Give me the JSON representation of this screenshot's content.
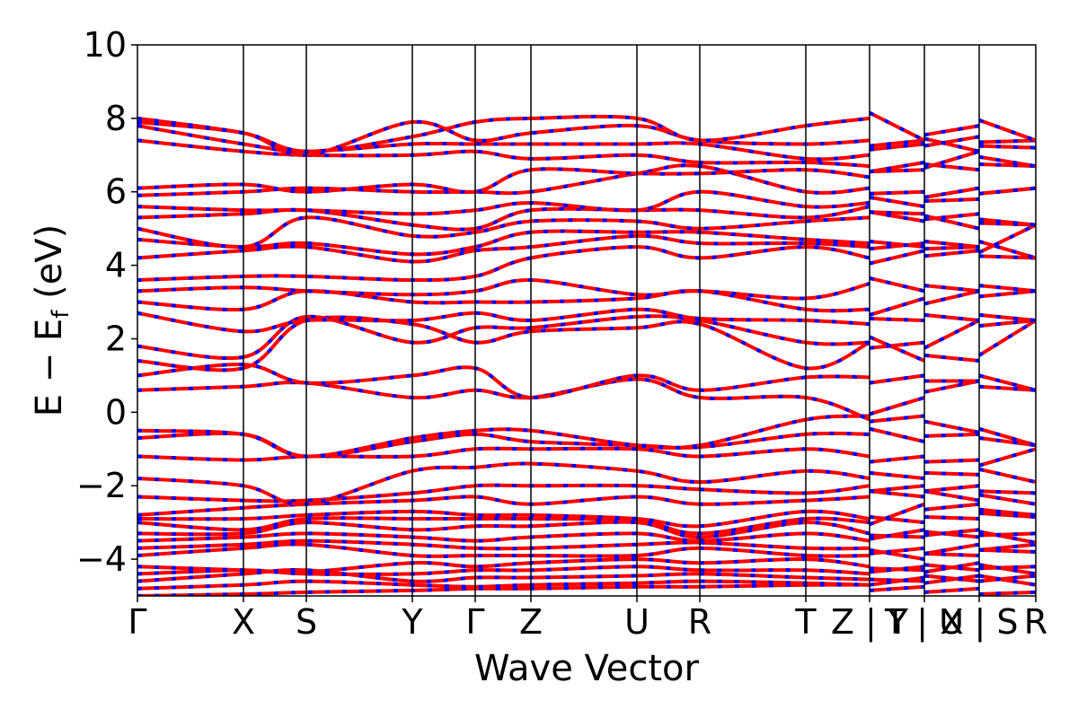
{
  "chart_data": {
    "type": "line",
    "xlabel": "Wave Vector",
    "ylabel": "E − Eᶠ (eV)",
    "ylabel_parts": {
      "main": "E − E",
      "sub": "f",
      "unit": " (eV)"
    },
    "ylim": [
      -5,
      10
    ],
    "yticks": [
      -4,
      -2,
      0,
      2,
      4,
      6,
      8,
      10
    ],
    "ytick_labels": [
      "−4",
      "−2",
      "0",
      "2",
      "4",
      "6",
      "8",
      "10"
    ],
    "kpath": [
      {
        "label": "Γ",
        "x": 0.0
      },
      {
        "label": "X",
        "x": 0.118
      },
      {
        "label": "S",
        "x": 0.188
      },
      {
        "label": "Y",
        "x": 0.306
      },
      {
        "label": "Γ",
        "x": 0.376
      },
      {
        "label": "Z",
        "x": 0.438
      },
      {
        "label": "U",
        "x": 0.556
      },
      {
        "label": "R",
        "x": 0.626
      },
      {
        "label": "T",
        "x": 0.744
      },
      {
        "label": "Z | Y",
        "x": 0.815
      },
      {
        "label": "T | U",
        "x": 0.876
      },
      {
        "label": "X | S",
        "x": 0.937
      },
      {
        "label": "R",
        "x": 1.0
      }
    ],
    "segment_breaks": [
      0.815,
      0.876,
      0.937
    ],
    "grid": false,
    "legend": "none",
    "series": [
      {
        "color": "#ff0000",
        "style": "solid"
      },
      {
        "color": "#0000ff",
        "style": "dotted"
      }
    ],
    "bands": [
      [
        -5.0,
        -4.95,
        -4.9,
        -4.85,
        -4.8,
        -4.8,
        -4.75,
        -4.75,
        -4.7,
        -4.7,
        -4.75,
        -4.8,
        -4.9
      ],
      [
        -4.8,
        -4.7,
        -4.6,
        -4.7,
        -4.75,
        -4.7,
        -4.65,
        -4.6,
        -4.65,
        -4.7,
        -4.6,
        -4.6,
        -4.7
      ],
      [
        -4.6,
        -4.4,
        -4.3,
        -4.6,
        -4.5,
        -4.5,
        -4.45,
        -4.4,
        -4.5,
        -4.55,
        -4.5,
        -4.45,
        -4.45
      ],
      [
        -4.4,
        -4.3,
        -4.4,
        -4.4,
        -4.3,
        -4.3,
        -4.2,
        -4.3,
        -4.3,
        -4.4,
        -4.3,
        -4.3,
        -4.4
      ],
      [
        -4.2,
        -4.3,
        -4.35,
        -4.1,
        -4.2,
        -4.1,
        -4.0,
        -4.1,
        -4.0,
        -4.2,
        -4.2,
        -4.1,
        -4.2
      ],
      [
        -3.9,
        -3.7,
        -3.6,
        -3.9,
        -3.9,
        -3.9,
        -3.9,
        -3.7,
        -3.9,
        -3.9,
        -4.0,
        -3.9,
        -3.8
      ],
      [
        -3.7,
        -3.6,
        -3.5,
        -3.6,
        -3.7,
        -3.7,
        -3.6,
        -3.55,
        -3.7,
        -3.7,
        -3.7,
        -3.6,
        -3.6
      ],
      [
        -3.5,
        -3.4,
        -3.3,
        -3.4,
        -3.5,
        -3.4,
        -3.3,
        -3.5,
        -3.3,
        -3.5,
        -3.4,
        -3.4,
        -3.55
      ],
      [
        -3.3,
        -3.3,
        -3.0,
        -3.2,
        -3.1,
        -3.1,
        -3.0,
        -3.4,
        -3.0,
        -3.3,
        -3.2,
        -3.2,
        -3.3
      ],
      [
        -3.0,
        -3.2,
        -2.9,
        -2.9,
        -2.9,
        -2.9,
        -2.95,
        -3.3,
        -2.9,
        -3.0,
        -3.0,
        -2.9,
        -2.85
      ],
      [
        -2.9,
        -2.9,
        -2.8,
        -2.7,
        -2.8,
        -2.8,
        -2.9,
        -3.1,
        -2.7,
        -2.9,
        -2.5,
        -2.5,
        -2.8
      ],
      [
        -2.8,
        -2.6,
        -2.5,
        -2.4,
        -2.3,
        -2.5,
        -2.3,
        -2.5,
        -2.4,
        -2.3,
        -2.3,
        -2.4,
        -2.5
      ],
      [
        -2.3,
        -2.4,
        -2.4,
        -2.2,
        -2.0,
        -2.0,
        -2.0,
        -2.1,
        -2.2,
        -2.0,
        -2.0,
        -2.0,
        -2.2
      ],
      [
        -1.8,
        -2.0,
        -2.5,
        -1.6,
        -1.5,
        -1.4,
        -1.6,
        -1.9,
        -1.6,
        -1.8,
        -1.8,
        -1.7,
        -1.9
      ],
      [
        -1.2,
        -1.3,
        -1.2,
        -1.2,
        -1.0,
        -1.0,
        -1.0,
        -1.2,
        -1.0,
        -1.2,
        -1.2,
        -1.3,
        -1.0
      ],
      [
        -0.7,
        -0.6,
        -1.2,
        -0.8,
        -0.6,
        -0.8,
        -0.9,
        -0.95,
        -0.6,
        -0.6,
        -0.8,
        -0.6,
        -0.9
      ],
      [
        -0.5,
        -0.6,
        -1.2,
        -0.7,
        -0.5,
        -0.5,
        -0.9,
        -0.9,
        -0.2,
        -0.1,
        -0.1,
        -0.55,
        -0.9
      ],
      [
        0.6,
        0.7,
        0.8,
        0.4,
        0.6,
        0.4,
        0.9,
        0.4,
        0.4,
        -0.2,
        0.4,
        0.85,
        0.6
      ],
      [
        1.0,
        1.3,
        0.8,
        1.0,
        1.2,
        0.4,
        1.0,
        0.6,
        0.95,
        0.95,
        1.0,
        0.85,
        0.6
      ],
      [
        1.4,
        1.2,
        2.5,
        2.4,
        1.9,
        2.2,
        2.3,
        2.4,
        1.2,
        1.9,
        1.4,
        1.4,
        2.5
      ],
      [
        1.8,
        1.5,
        2.6,
        1.9,
        2.3,
        2.3,
        2.6,
        2.5,
        1.9,
        1.9,
        1.9,
        2.5,
        2.5
      ],
      [
        2.7,
        2.2,
        2.5,
        2.5,
        2.7,
        2.5,
        2.8,
        2.55,
        2.5,
        2.4,
        2.5,
        2.5,
        2.5
      ],
      [
        3.0,
        2.8,
        3.3,
        3.0,
        3.0,
        3.0,
        3.1,
        3.3,
        2.8,
        2.8,
        3.1,
        3.3,
        3.3
      ],
      [
        3.3,
        3.4,
        3.3,
        3.2,
        3.3,
        3.6,
        3.2,
        3.3,
        3.1,
        3.5,
        3.3,
        3.3,
        3.3
      ],
      [
        3.6,
        3.7,
        3.7,
        3.6,
        3.7,
        4.2,
        4.5,
        4.2,
        4.5,
        4.2,
        4.4,
        4.4,
        4.2
      ],
      [
        4.2,
        4.4,
        4.5,
        4.1,
        4.4,
        4.5,
        4.8,
        4.6,
        4.6,
        4.5,
        4.5,
        4.5,
        4.2
      ],
      [
        4.7,
        4.5,
        4.6,
        4.3,
        4.5,
        4.9,
        4.9,
        4.9,
        4.7,
        4.6,
        4.6,
        4.5,
        5.1
      ],
      [
        5.0,
        4.5,
        5.3,
        4.8,
        4.9,
        5.2,
        5.2,
        5.0,
        5.2,
        5.3,
        5.2,
        5.0,
        5.1
      ],
      [
        5.3,
        5.4,
        5.5,
        5.1,
        5.0,
        5.5,
        5.5,
        5.5,
        5.3,
        5.6,
        5.4,
        5.4,
        5.1
      ],
      [
        5.6,
        5.5,
        5.5,
        5.4,
        5.5,
        5.7,
        5.5,
        6.0,
        5.6,
        5.7,
        5.6,
        5.8,
        6.1
      ],
      [
        5.9,
        6.0,
        6.1,
        6.0,
        6.0,
        6.0,
        6.5,
        6.7,
        6.0,
        6.1,
        6.0,
        6.1,
        6.1
      ],
      [
        6.1,
        6.2,
        6.0,
        6.2,
        6.0,
        6.6,
        6.5,
        6.5,
        6.6,
        6.4,
        6.6,
        6.6,
        6.7
      ],
      [
        7.4,
        7.1,
        7.0,
        7.0,
        7.1,
        6.9,
        7.0,
        6.8,
        6.8,
        6.7,
        6.8,
        7.1,
        6.7
      ],
      [
        7.8,
        7.3,
        7.1,
        7.3,
        7.3,
        7.3,
        7.3,
        7.3,
        6.9,
        7.0,
        7.3,
        7.1,
        7.2
      ],
      [
        7.9,
        7.6,
        7.0,
        7.9,
        7.4,
        7.6,
        7.8,
        7.4,
        7.3,
        7.4,
        7.4,
        7.5,
        7.4
      ],
      [
        8.0,
        7.6,
        7.1,
        7.5,
        7.9,
        8.0,
        8.0,
        7.4,
        7.8,
        8.0,
        7.4,
        7.8,
        7.4
      ]
    ]
  }
}
